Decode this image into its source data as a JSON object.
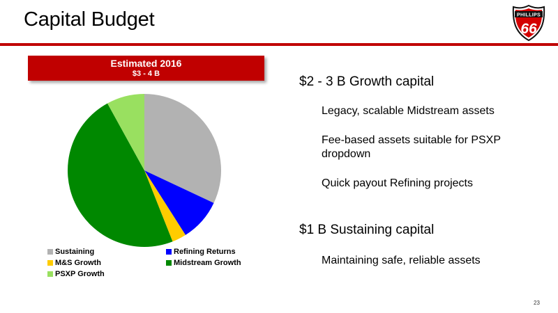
{
  "title": "Capital Budget",
  "logo": {
    "top_text": "PHILLIPS",
    "number": "66"
  },
  "banner": {
    "title": "Estimated 2016",
    "subtitle": "$3 - 4 B"
  },
  "chart_data": {
    "type": "pie",
    "title": "Estimated 2016",
    "subtitle": "$3 - 4 B",
    "start_angle_deg": 0,
    "direction": "clockwise",
    "series": [
      {
        "name": "Sustaining",
        "value": 32,
        "color": "#b2b2b2"
      },
      {
        "name": "Refining Returns",
        "value": 9,
        "color": "#0000ff"
      },
      {
        "name": "M&S Growth",
        "value": 3,
        "color": "#ffcc00"
      },
      {
        "name": "Midstream Growth",
        "value": 48,
        "color": "#008800"
      },
      {
        "name": "PSXP Growth",
        "value": 8,
        "color": "#99e060"
      }
    ],
    "legend_position": "bottom"
  },
  "bullets": {
    "growth_heading": "$2 - 3 B Growth capital",
    "growth_items": [
      "Legacy, scalable Midstream assets",
      "Fee-based assets suitable for PSXP dropdown",
      "Quick payout Refining projects"
    ],
    "sustaining_heading": "$1 B Sustaining capital",
    "sustaining_items": [
      "Maintaining safe, reliable assets"
    ]
  },
  "page_number": "23"
}
